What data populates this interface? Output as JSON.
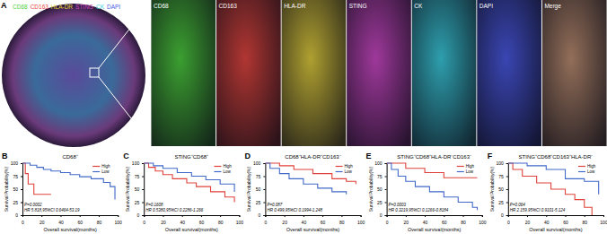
{
  "panel_a": {
    "label": "A",
    "markers": [
      {
        "name": "CD68",
        "color": "#4cd13a"
      },
      {
        "name": "CD163",
        "color": "#e8453c"
      },
      {
        "name": "HLA-DR",
        "color": "#e6d23a"
      },
      {
        "name": "STING",
        "color": "#d048c8"
      },
      {
        "name": "CK",
        "color": "#3ad0e0"
      },
      {
        "name": "DAPI",
        "color": "#4a5ae8"
      }
    ],
    "tiles": [
      {
        "label": "CD68",
        "color": "#4cd13a"
      },
      {
        "label": "CD163",
        "color": "#e8453c"
      },
      {
        "label": "HLA-DR",
        "color": "#e6d23a"
      },
      {
        "label": "STING",
        "color": "#d048c8"
      },
      {
        "label": "CK",
        "color": "#3ad0e0"
      },
      {
        "label": "DAPI",
        "color": "#4a5ae8"
      },
      {
        "label": "Merge",
        "color": "#c09070"
      }
    ]
  },
  "chart_data": [
    {
      "type": "line",
      "line_style": "step",
      "panel_label": "B",
      "title": "CD68⁺",
      "xlabel": "Overall survival(months)",
      "ylabel": "Survival Probability(%)",
      "xlim": [
        0,
        100
      ],
      "xticks": [
        0,
        20,
        40,
        60,
        80,
        100
      ],
      "ylim": [
        0,
        100
      ],
      "yticks": [
        0,
        25,
        50,
        75,
        100
      ],
      "legend": "upper right",
      "annotations": [
        "P=0.0002",
        "HR 5.818,95%CI 0.6464-53.19"
      ],
      "series": [
        {
          "name": "High",
          "color": "#e0413a",
          "x": [
            0,
            3,
            6,
            12,
            30
          ],
          "values": [
            100,
            80,
            60,
            40,
            40
          ]
        },
        {
          "name": "Low",
          "color": "#4169c8",
          "x": [
            0,
            8,
            15,
            22,
            30,
            40,
            50,
            60,
            72,
            85,
            92,
            97
          ],
          "values": [
            100,
            96,
            92,
            88,
            85,
            82,
            78,
            74,
            70,
            63,
            55,
            30
          ]
        }
      ]
    },
    {
      "type": "line",
      "line_style": "step",
      "panel_label": "C",
      "title": "STING⁺CD68⁺",
      "xlabel": "Overall survival(months)",
      "ylabel": "Survival Probability(%)",
      "xlim": [
        0,
        100
      ],
      "xticks": [
        0,
        20,
        40,
        60,
        80,
        100
      ],
      "ylim": [
        0,
        100
      ],
      "yticks": [
        0,
        25,
        50,
        75,
        100
      ],
      "legend": "upper right",
      "annotations": [
        "P=0.1608",
        "HR 0.5380,95%CI 0.2286-1.266"
      ],
      "series": [
        {
          "name": "High",
          "color": "#e0413a",
          "x": [
            0,
            5,
            12,
            20,
            30,
            45,
            55,
            70,
            85,
            95
          ],
          "values": [
            100,
            92,
            85,
            78,
            70,
            62,
            55,
            45,
            35,
            25
          ]
        },
        {
          "name": "Low",
          "color": "#4169c8",
          "x": [
            0,
            10,
            20,
            35,
            50,
            65,
            80,
            95
          ],
          "values": [
            100,
            95,
            90,
            82,
            75,
            68,
            60,
            45
          ]
        }
      ]
    },
    {
      "type": "line",
      "line_style": "step",
      "panel_label": "D",
      "title": "CD68⁺HLA-DR⁺CD163⁻",
      "xlabel": "Overall survival(months)",
      "ylabel": "Survival Probability(%)",
      "xlim": [
        0,
        100
      ],
      "xticks": [
        0,
        20,
        40,
        60,
        80,
        100
      ],
      "ylim": [
        0,
        100
      ],
      "yticks": [
        0,
        25,
        50,
        75,
        100
      ],
      "legend": "upper right",
      "annotations": [
        "P=0.087",
        "HR 0.499,95%CI 0.1994-1.248"
      ],
      "series": [
        {
          "name": "High",
          "color": "#e0413a",
          "x": [
            0,
            15,
            30,
            50,
            70,
            85,
            95
          ],
          "values": [
            100,
            95,
            88,
            80,
            70,
            65,
            60
          ]
        },
        {
          "name": "Low",
          "color": "#4169c8",
          "x": [
            0,
            5,
            15,
            25,
            40,
            55,
            70,
            85
          ],
          "values": [
            100,
            90,
            80,
            70,
            60,
            52,
            45,
            40
          ]
        }
      ]
    },
    {
      "type": "line",
      "line_style": "step",
      "panel_label": "E",
      "title": "STING⁺CD68⁺HLA-DR⁻CD163⁻",
      "xlabel": "Overall survival(months)",
      "ylabel": "Survival Probability(%)",
      "xlim": [
        0,
        100
      ],
      "xticks": [
        0,
        20,
        40,
        60,
        80,
        100
      ],
      "ylim": [
        0,
        100
      ],
      "yticks": [
        0,
        25,
        50,
        75,
        100
      ],
      "legend": "upper right",
      "annotations": [
        "P=0.0003",
        "HR 0.3219,95%CI 0.1266-0.8184"
      ],
      "series": [
        {
          "name": "High",
          "color": "#e0413a",
          "x": [
            0,
            20,
            40,
            60,
            95
          ],
          "values": [
            100,
            90,
            82,
            72,
            72
          ]
        },
        {
          "name": "Low",
          "color": "#4169c8",
          "x": [
            0,
            5,
            12,
            20,
            30,
            45,
            60,
            75,
            90,
            95
          ],
          "values": [
            100,
            88,
            75,
            65,
            55,
            45,
            35,
            25,
            15,
            10
          ]
        }
      ]
    },
    {
      "type": "line",
      "line_style": "step",
      "panel_label": "F",
      "title": "STING⁺CD68⁺CD163⁺HLA-DR⁻",
      "xlabel": "Overall survival(months)",
      "ylabel": "Survival Probability(%)",
      "xlim": [
        0,
        100
      ],
      "xticks": [
        0,
        20,
        40,
        60,
        80,
        100
      ],
      "ylim": [
        0,
        100
      ],
      "yticks": [
        0,
        25,
        50,
        75,
        100
      ],
      "legend": "upper right",
      "annotations": [
        "P=0.064",
        "HR 2.159,95%CI 0.9101-5.124"
      ],
      "series": [
        {
          "name": "High",
          "color": "#e0413a",
          "x": [
            0,
            5,
            15,
            30,
            45,
            60,
            70,
            80,
            88
          ],
          "values": [
            100,
            88,
            75,
            62,
            50,
            40,
            30,
            15,
            0
          ]
        },
        {
          "name": "Low",
          "color": "#4169c8",
          "x": [
            0,
            20,
            40,
            60,
            80,
            95
          ],
          "values": [
            100,
            95,
            88,
            70,
            65,
            40
          ]
        }
      ]
    }
  ]
}
